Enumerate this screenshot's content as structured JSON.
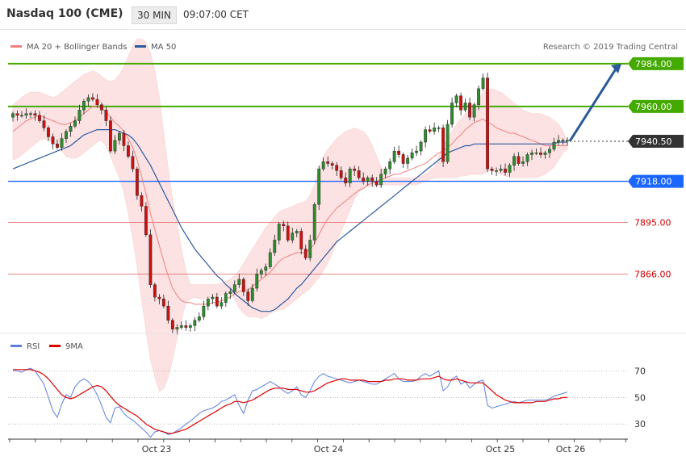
{
  "header": {
    "symbol": "Nasdaq 100 (CME)",
    "timeframe": "30 MIN",
    "time": "09:07:00 CET"
  },
  "legend": [
    {
      "label": "MA 20 + Bollinger Bands",
      "color": "#f08080"
    },
    {
      "label": "MA 50",
      "color": "#2c5aa0"
    }
  ],
  "credit": "Research © 2019 Trading Central",
  "rsi_legend": [
    {
      "label": "RSI",
      "color": "#5b7fe0"
    },
    {
      "label": "9MA",
      "color": "#dd0000"
    }
  ],
  "chart_data": [
    {
      "type": "candlestick",
      "title": "Nasdaq 100 (CME)",
      "ylim": [
        7834,
        8003
      ],
      "x_ticks": [
        "Oct 23",
        "Oct 24",
        "Oct 25",
        "Oct 26"
      ],
      "levels": [
        {
          "value": 7984.0,
          "label": "7984.00",
          "kind": "resistance",
          "color": "#44aa00"
        },
        {
          "value": 7960.0,
          "label": "7960.00",
          "kind": "resistance",
          "color": "#44aa00"
        },
        {
          "value": 7940.5,
          "label": "7940.50",
          "kind": "last",
          "color": "#333333"
        },
        {
          "value": 7918.0,
          "label": "7918.00",
          "kind": "pivot",
          "color": "#1a66ff"
        },
        {
          "value": 7895.0,
          "label": "7895.00",
          "kind": "support",
          "color": "#cc0000"
        },
        {
          "value": 7866.0,
          "label": "7866.00",
          "kind": "support",
          "color": "#cc0000"
        }
      ],
      "closes": [
        7956,
        7955,
        7955,
        7956,
        7956,
        7955,
        7952,
        7948,
        7943,
        7939,
        7937,
        7942,
        7946,
        7949,
        7952,
        7958,
        7963,
        7965,
        7964,
        7961,
        7958,
        7952,
        7935,
        7941,
        7945,
        7938,
        7932,
        7925,
        7910,
        7904,
        7888,
        7860,
        7853,
        7852,
        7848,
        7840,
        7835,
        7836,
        7837,
        7836,
        7837,
        7840,
        7842,
        7848,
        7852,
        7853,
        7848,
        7850,
        7855,
        7856,
        7860,
        7863,
        7856,
        7851,
        7858,
        7866,
        7868,
        7870,
        7878,
        7885,
        7894,
        7893,
        7885,
        7889,
        7890,
        7880,
        7875,
        7885,
        7905,
        7925,
        7929,
        7928,
        7927,
        7924,
        7920,
        7917,
        7925,
        7924,
        7920,
        7918,
        7920,
        7918,
        7916,
        7922,
        7925,
        7929,
        7935,
        7933,
        7928,
        7931,
        7934,
        7935,
        7940,
        7947,
        7946,
        7948,
        7948,
        7929,
        7950,
        7962,
        7966,
        7958,
        7962,
        7954,
        7961,
        7970,
        7976,
        7925,
        7924,
        7924,
        7925,
        7923,
        7927,
        7932,
        7928,
        7929,
        7933,
        7934,
        7934,
        7933,
        7934,
        7936,
        7940,
        7941,
        7941,
        7941
      ],
      "ma20": [
        7946,
        7948,
        7950,
        7952,
        7953,
        7954,
        7955,
        7954,
        7953,
        7952,
        7951,
        7950,
        7950,
        7951,
        7952,
        7954,
        7956,
        7958,
        7960,
        7960,
        7959,
        7957,
        7954,
        7951,
        7949,
        7946,
        7942,
        7937,
        7930,
        7921,
        7911,
        7900,
        7891,
        7882,
        7873,
        7865,
        7858,
        7854,
        7851,
        7850,
        7850,
        7849,
        7849,
        7849,
        7849,
        7850,
        7850,
        7851,
        7852,
        7853,
        7855,
        7856,
        7857,
        7857,
        7859,
        7861,
        7863,
        7865,
        7867,
        7870,
        7873,
        7875,
        7876,
        7877,
        7878,
        7878,
        7878,
        7880,
        7883,
        7888,
        7893,
        7897,
        7900,
        7903,
        7905,
        7907,
        7909,
        7911,
        7913,
        7914,
        7916,
        7917,
        7918,
        7919,
        7920,
        7921,
        7922,
        7922,
        7923,
        7924,
        7925,
        7926,
        7927,
        7928,
        7930,
        7932,
        7934,
        7935,
        7937,
        7939,
        7942,
        7944,
        7947,
        7949,
        7951,
        7952,
        7953,
        7951,
        7950,
        7948,
        7947,
        7946,
        7945,
        7945,
        7944,
        7943,
        7942,
        7941,
        7940,
        7939,
        7938,
        7938,
        7938,
        7938,
        7938,
        7938
      ],
      "bb_upper": [
        7961,
        7963,
        7965,
        7967,
        7968,
        7968,
        7968,
        7967,
        7966,
        7965,
        7966,
        7968,
        7970,
        7972,
        7974,
        7976,
        7978,
        7979,
        7980,
        7979,
        7977,
        7975,
        7974,
        7975,
        7978,
        7982,
        7988,
        7994,
        7998,
        7998,
        7996,
        7990,
        7980,
        7965,
        7945,
        7925,
        7908,
        7895,
        7880,
        7868,
        7860,
        7860,
        7860,
        7860,
        7860,
        7860,
        7860,
        7861,
        7862,
        7863,
        7865,
        7868,
        7872,
        7876,
        7880,
        7884,
        7888,
        7892,
        7895,
        7898,
        7901,
        7902,
        7903,
        7904,
        7905,
        7906,
        7907,
        7910,
        7916,
        7925,
        7932,
        7936,
        7939,
        7942,
        7944,
        7946,
        7947,
        7948,
        7947,
        7946,
        7943,
        7938,
        7932,
        7926,
        7922,
        7920,
        7920,
        7920,
        7920,
        7920,
        7920,
        7920,
        7921,
        7922,
        7924,
        7926,
        7932,
        7938,
        7942,
        7946,
        7950,
        7953,
        7956,
        7958,
        7960,
        7964,
        7968,
        7969,
        7970,
        7969,
        7968,
        7966,
        7964,
        7962,
        7960,
        7958,
        7957,
        7956,
        7956,
        7956,
        7955,
        7954,
        7952,
        7950,
        7946,
        7940
      ],
      "bb_lower": [
        7930,
        7931,
        7933,
        7935,
        7937,
        7939,
        7941,
        7942,
        7941,
        7940,
        7938,
        7935,
        7932,
        7931,
        7931,
        7932,
        7934,
        7936,
        7938,
        7940,
        7941,
        7938,
        7932,
        7926,
        7920,
        7912,
        7900,
        7886,
        7870,
        7852,
        7834,
        7818,
        7808,
        7800,
        7802,
        7808,
        7818,
        7830,
        7840,
        7850,
        7852,
        7853,
        7852,
        7852,
        7853,
        7853,
        7853,
        7854,
        7855,
        7855,
        7852,
        7847,
        7844,
        7842,
        7842,
        7842,
        7841,
        7842,
        7844,
        7845,
        7846,
        7846,
        7848,
        7850,
        7852,
        7854,
        7856,
        7858,
        7861,
        7864,
        7868,
        7872,
        7878,
        7884,
        7890,
        7896,
        7902,
        7908,
        7912,
        7914,
        7915,
        7915,
        7915,
        7916,
        7916,
        7916,
        7916,
        7916,
        7916,
        7916,
        7916,
        7916,
        7917,
        7918,
        7919,
        7920,
        7920,
        7920,
        7920,
        7920,
        7920,
        7921,
        7921,
        7922,
        7922,
        7922,
        7922,
        7924,
        7924,
        7923,
        7922,
        7921,
        7920,
        7920,
        7920,
        7920,
        7920,
        7920,
        7920,
        7921,
        7922,
        7924,
        7926,
        7930,
        7934,
        7936
      ],
      "ma50": [
        7925,
        7926,
        7927,
        7928,
        7929,
        7930,
        7931,
        7932,
        7933,
        7934,
        7935,
        7936,
        7937,
        7938,
        7940,
        7942,
        7944,
        7945,
        7946,
        7947,
        7947,
        7947,
        7947,
        7947,
        7946,
        7945,
        7944,
        7942,
        7939,
        7935,
        7931,
        7927,
        7922,
        7917,
        7912,
        7907,
        7902,
        7897,
        7892,
        7888,
        7884,
        7880,
        7877,
        7874,
        7871,
        7868,
        7865,
        7863,
        7860,
        7858,
        7855,
        7853,
        7851,
        7849,
        7847,
        7846,
        7845,
        7845,
        7845,
        7846,
        7848,
        7850,
        7852,
        7855,
        7858,
        7860,
        7863,
        7866,
        7869,
        7872,
        7875,
        7878,
        7881,
        7884,
        7886,
        7888,
        7890,
        7892,
        7894,
        7896,
        7898,
        7900,
        7902,
        7904,
        7906,
        7908,
        7910,
        7912,
        7914,
        7916,
        7918,
        7920,
        7922,
        7924,
        7926,
        7928,
        7930,
        7932,
        7934,
        7935,
        7936,
        7937,
        7938,
        7938,
        7939,
        7939,
        7939,
        7939,
        7939,
        7939,
        7939,
        7939,
        7939,
        7939,
        7939,
        7939,
        7939,
        7939,
        7939,
        7939,
        7939,
        7939,
        7939,
        7940,
        7940,
        7940
      ],
      "forecast": {
        "from": 7940.5,
        "to": 7984.0
      }
    },
    {
      "type": "line",
      "title": "RSI",
      "ylim": [
        21,
        80
      ],
      "y_ticks": [
        70,
        50,
        30
      ],
      "x_ticks": [
        "Oct 23",
        "Oct 24",
        "Oct 25",
        "Oct 26"
      ],
      "series": [
        {
          "name": "RSI",
          "color": "#5b7fe0",
          "values": [
            70,
            70,
            69,
            71,
            72,
            70,
            65,
            60,
            50,
            40,
            35,
            45,
            52,
            50,
            58,
            62,
            64,
            62,
            58,
            52,
            44,
            35,
            31,
            42,
            43,
            38,
            35,
            33,
            30,
            27,
            24,
            20,
            24,
            25,
            24,
            22,
            23,
            25,
            27,
            30,
            32,
            35,
            38,
            40,
            41,
            42,
            44,
            47,
            48,
            50,
            52,
            44,
            38,
            48,
            55,
            56,
            58,
            60,
            62,
            60,
            58,
            55,
            53,
            55,
            58,
            52,
            50,
            55,
            62,
            66,
            68,
            66,
            65,
            64,
            63,
            62,
            61,
            62,
            63,
            62,
            61,
            60,
            60,
            62,
            64,
            66,
            68,
            64,
            62,
            62,
            62,
            63,
            66,
            68,
            66,
            68,
            70,
            55,
            58,
            64,
            66,
            60,
            62,
            57,
            60,
            62,
            63,
            44,
            42,
            43,
            44,
            45,
            46,
            47,
            46,
            47,
            48,
            48,
            48,
            48,
            48,
            49,
            51,
            52,
            53,
            54
          ]
        },
        {
          "name": "9MA",
          "color": "#dd0000",
          "values": [
            71,
            71,
            71,
            71,
            71,
            70,
            69,
            67,
            64,
            60,
            56,
            52,
            50,
            49,
            50,
            52,
            54,
            56,
            58,
            59,
            58,
            55,
            51,
            47,
            44,
            42,
            40,
            38,
            36,
            33,
            30,
            28,
            26,
            25,
            24,
            23,
            23,
            24,
            25,
            26,
            28,
            30,
            32,
            34,
            36,
            38,
            40,
            42,
            44,
            45,
            47,
            47,
            46,
            47,
            48,
            50,
            52,
            54,
            56,
            57,
            57,
            57,
            56,
            56,
            56,
            55,
            54,
            54,
            55,
            57,
            59,
            61,
            62,
            63,
            64,
            64,
            63,
            63,
            63,
            63,
            62,
            62,
            62,
            62,
            63,
            63,
            64,
            64,
            64,
            63,
            63,
            63,
            64,
            64,
            64,
            65,
            66,
            64,
            63,
            63,
            64,
            63,
            62,
            61,
            61,
            61,
            61,
            58,
            55,
            52,
            50,
            48,
            47,
            46,
            46,
            46,
            46,
            46,
            47,
            47,
            47,
            48,
            49,
            49,
            50,
            50
          ]
        }
      ]
    }
  ]
}
